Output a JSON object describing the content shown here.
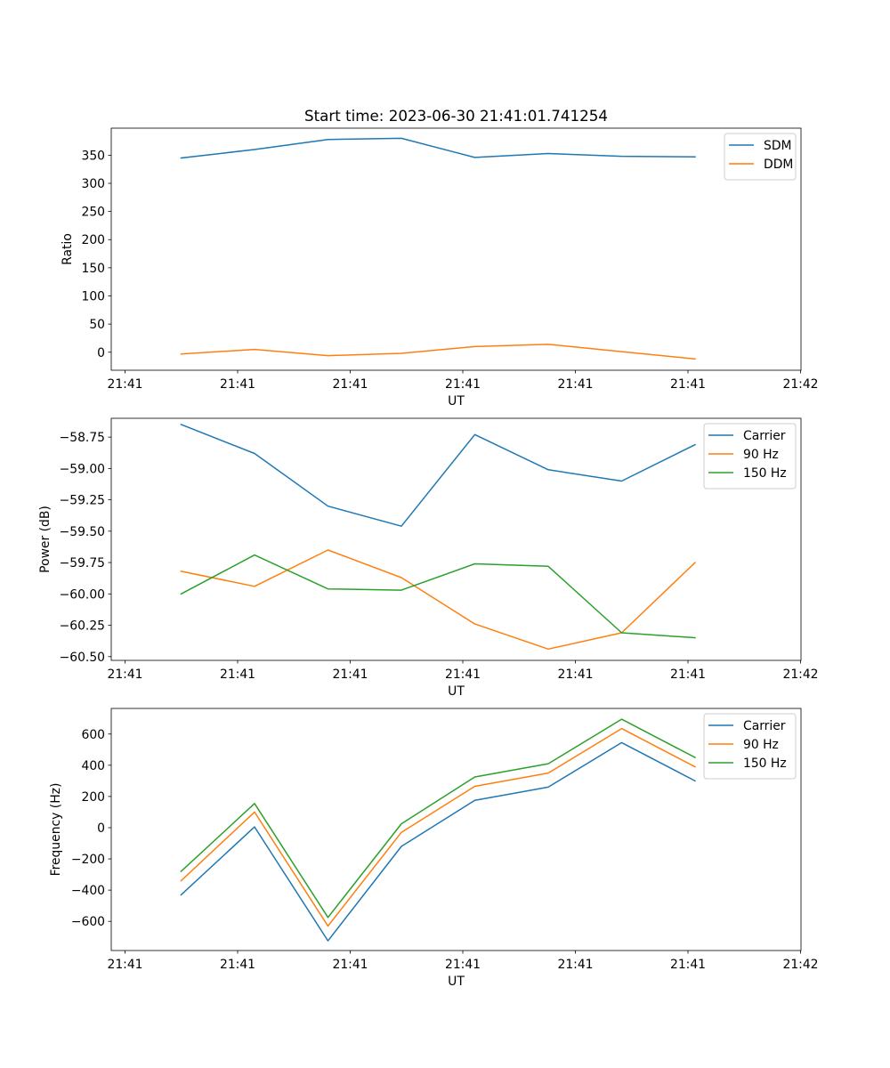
{
  "figure": {
    "title": "Start time: 2023-06-30 21:41:01.741254"
  },
  "chart_data": [
    {
      "type": "line",
      "title": "Start time: 2023-06-30 21:41:01.741254",
      "xlabel": "UT",
      "ylabel": "Ratio",
      "x_tick_labels": [
        "21:41",
        "21:41",
        "21:41",
        "21:41",
        "21:41",
        "21:41",
        "21:42"
      ],
      "y_ticks": [
        0,
        50,
        100,
        150,
        200,
        250,
        300,
        350
      ],
      "y_tick_labels": [
        "0",
        "50",
        "100",
        "150",
        "200",
        "250",
        "300",
        "350"
      ],
      "ylim": [
        -32,
        398
      ],
      "legend_position": "top-right",
      "series": [
        {
          "name": "SDM",
          "color": "#1f77b4",
          "values": [
            345,
            360,
            378,
            380,
            346,
            353,
            348,
            347
          ]
        },
        {
          "name": "DDM",
          "color": "#ff7f0e",
          "values": [
            -3,
            5,
            -6,
            -2,
            10,
            14,
            1,
            -12
          ]
        }
      ]
    },
    {
      "type": "line",
      "xlabel": "UT",
      "ylabel": "Power (dB)",
      "x_tick_labels": [
        "21:41",
        "21:41",
        "21:41",
        "21:41",
        "21:41",
        "21:41",
        "21:42"
      ],
      "y_ticks": [
        -60.5,
        -60.25,
        -60.0,
        -59.75,
        -59.5,
        -59.25,
        -59.0,
        -58.75
      ],
      "y_tick_labels": [
        "−60.50",
        "−60.25",
        "−60.00",
        "−59.75",
        "−59.50",
        "−59.25",
        "−59.00",
        "−58.75"
      ],
      "ylim": [
        -60.53,
        -58.6
      ],
      "legend_position": "top-right",
      "series": [
        {
          "name": "Carrier",
          "color": "#1f77b4",
          "values": [
            -58.65,
            -58.88,
            -59.3,
            -59.46,
            -58.73,
            -59.01,
            -59.1,
            -58.81
          ]
        },
        {
          "name": "90 Hz",
          "color": "#ff7f0e",
          "values": [
            -59.82,
            -59.94,
            -59.65,
            -59.87,
            -60.24,
            -60.44,
            -60.31,
            -59.75
          ]
        },
        {
          "name": "150 Hz",
          "color": "#2ca02c",
          "values": [
            -60.0,
            -59.69,
            -59.96,
            -59.97,
            -59.76,
            -59.78,
            -60.31,
            -60.35
          ]
        }
      ]
    },
    {
      "type": "line",
      "xlabel": "UT",
      "ylabel": "Frequency (Hz)",
      "x_tick_labels": [
        "21:41",
        "21:41",
        "21:41",
        "21:41",
        "21:41",
        "21:41",
        "21:42"
      ],
      "y_ticks": [
        -600,
        -400,
        -200,
        0,
        200,
        400,
        600
      ],
      "y_tick_labels": [
        "−600",
        "−400",
        "−200",
        "0",
        "200",
        "400",
        "600"
      ],
      "ylim": [
        -787,
        764
      ],
      "legend_position": "top-right",
      "series": [
        {
          "name": "Carrier",
          "color": "#1f77b4",
          "values": [
            -430,
            5,
            -725,
            -120,
            175,
            260,
            545,
            300
          ]
        },
        {
          "name": "90 Hz",
          "color": "#ff7f0e",
          "values": [
            -340,
            100,
            -630,
            -30,
            265,
            350,
            635,
            390
          ]
        },
        {
          "name": "150 Hz",
          "color": "#2ca02c",
          "values": [
            -280,
            155,
            -575,
            25,
            325,
            410,
            695,
            450
          ]
        }
      ]
    }
  ]
}
